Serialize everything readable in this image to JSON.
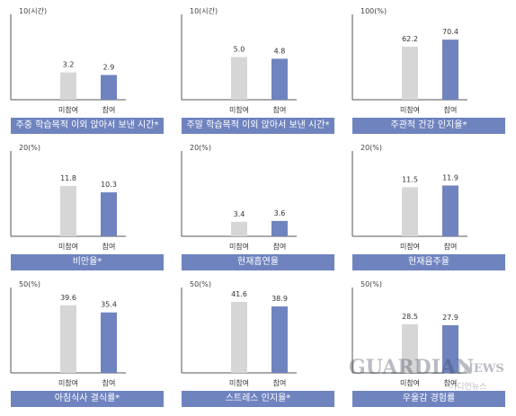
{
  "chart_data": [
    {
      "type": "bar",
      "title": "주중 학습목적 이외 앉아서 보낸 시간*",
      "ylabel": "10(시간)",
      "ylim": [
        0,
        10
      ],
      "categories": [
        "미참여",
        "참여"
      ],
      "values": [
        3.2,
        2.9
      ],
      "value_labels": [
        "3.2",
        "2.9"
      ]
    },
    {
      "type": "bar",
      "title": "주말 학습목적 이외 앉아서 보낸 시간*",
      "ylabel": "10(시간)",
      "ylim": [
        0,
        10
      ],
      "categories": [
        "미참여",
        "참여"
      ],
      "values": [
        5.0,
        4.8
      ],
      "value_labels": [
        "5.0",
        "4.8"
      ]
    },
    {
      "type": "bar",
      "title": "주관적 건강 인지율*",
      "ylabel": "100(%)",
      "ylim": [
        0,
        100
      ],
      "categories": [
        "미참여",
        "참여"
      ],
      "values": [
        62.2,
        70.4
      ],
      "value_labels": [
        "62.2",
        "70.4"
      ]
    },
    {
      "type": "bar",
      "title": "비만율*",
      "ylabel": "20(%)",
      "ylim": [
        0,
        20
      ],
      "categories": [
        "미참여",
        "참여"
      ],
      "values": [
        11.8,
        10.3
      ],
      "value_labels": [
        "11.8",
        "10.3"
      ]
    },
    {
      "type": "bar",
      "title": "현재흡연율",
      "ylabel": "20(%)",
      "ylim": [
        0,
        20
      ],
      "categories": [
        "미참여",
        "참여"
      ],
      "values": [
        3.4,
        3.6
      ],
      "value_labels": [
        "3.4",
        "3.6"
      ]
    },
    {
      "type": "bar",
      "title": "현재음주율",
      "ylabel": "20(%)",
      "ylim": [
        0,
        20
      ],
      "categories": [
        "미참여",
        "참여"
      ],
      "values": [
        11.5,
        11.9
      ],
      "value_labels": [
        "11.5",
        "11.9"
      ]
    },
    {
      "type": "bar",
      "title": "아침식사 결식률*",
      "ylabel": "50(%)",
      "ylim": [
        0,
        50
      ],
      "categories": [
        "미참여",
        "참여"
      ],
      "values": [
        39.6,
        35.4
      ],
      "value_labels": [
        "39.6",
        "35.4"
      ]
    },
    {
      "type": "bar",
      "title": "스트레스 인지율*",
      "ylabel": "50(%)",
      "ylim": [
        0,
        50
      ],
      "categories": [
        "미참여",
        "참여"
      ],
      "values": [
        41.6,
        38.9
      ],
      "value_labels": [
        "41.6",
        "38.9"
      ]
    },
    {
      "type": "bar",
      "title": "우울감 경험률",
      "ylabel": "50(%)",
      "ylim": [
        0,
        50
      ],
      "categories": [
        "미참여",
        "참여"
      ],
      "values": [
        28.5,
        27.9
      ],
      "value_labels": [
        "28.5",
        "27.9"
      ]
    }
  ],
  "colors": {
    "bar_nonparticipant": "#d6d6d6",
    "bar_participant": "#6f83bf",
    "banner": "#6f83bf",
    "axis": "#555555"
  },
  "watermark": {
    "main": "GUARDIAN",
    "news": "NEWS",
    "sub": "가디언뉴스"
  }
}
